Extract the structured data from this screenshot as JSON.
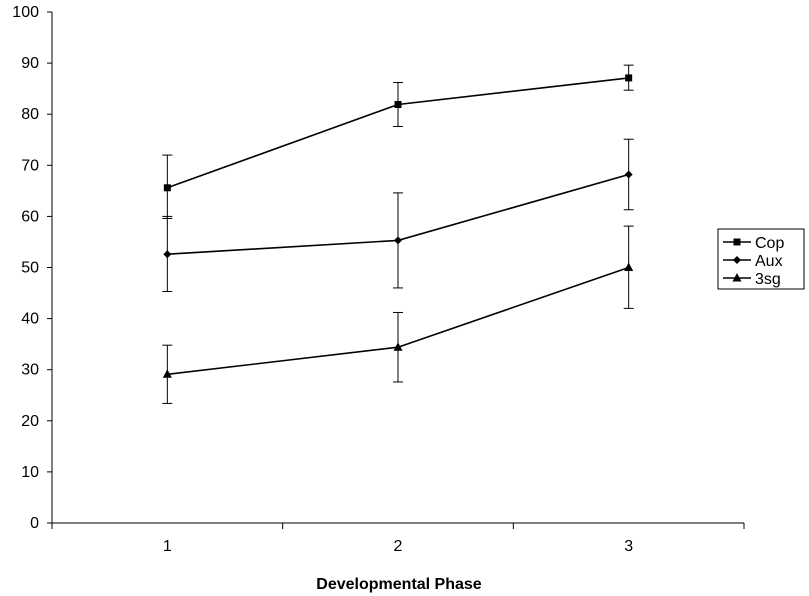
{
  "chart_data": {
    "type": "line",
    "title": "",
    "xlabel": "Developmental Phase",
    "ylabel": "",
    "categories": [
      "1",
      "2",
      "3"
    ],
    "ylim": [
      0,
      100
    ],
    "yticks": [
      0,
      10,
      20,
      30,
      40,
      50,
      60,
      70,
      80,
      90,
      100
    ],
    "grid": false,
    "legend_position": "right",
    "series": [
      {
        "name": "Cop",
        "marker": "square",
        "values": [
          65.6,
          81.9,
          87.1
        ],
        "error_low": [
          59.6,
          77.6,
          84.7
        ],
        "error_high": [
          72.0,
          86.2,
          89.6
        ]
      },
      {
        "name": "Aux",
        "marker": "diamond",
        "values": [
          52.6,
          55.3,
          68.2
        ],
        "error_low": [
          45.3,
          46.0,
          61.3
        ],
        "error_high": [
          60.0,
          64.6,
          75.1
        ]
      },
      {
        "name": "3sg",
        "marker": "triangle",
        "values": [
          29.1,
          34.4,
          50.0
        ],
        "error_low": [
          23.4,
          27.6,
          42.0
        ],
        "error_high": [
          34.8,
          41.2,
          58.1
        ]
      }
    ]
  }
}
